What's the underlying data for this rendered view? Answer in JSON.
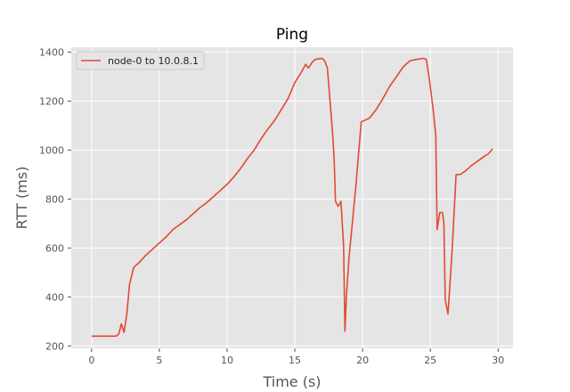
{
  "chart_data": {
    "type": "line",
    "title": "Ping",
    "xlabel": "Time (s)",
    "ylabel": "RTT (ms)",
    "xlim": [
      -1.5,
      31.1
    ],
    "ylim": [
      190,
      1420
    ],
    "xticks": [
      0,
      5,
      10,
      15,
      20,
      25,
      30
    ],
    "yticks": [
      200,
      400,
      600,
      800,
      1000,
      1200,
      1400
    ],
    "grid": true,
    "legend_position": "top-left",
    "background_color": "#e5e5e5",
    "series": [
      {
        "name": "node-0 to 10.0.8.1",
        "color": "#e24a33",
        "x": [
          0,
          0.5,
          1,
          1.5,
          1.8,
          2.0,
          2.2,
          2.4,
          2.6,
          2.8,
          3.1,
          3.5,
          4.0,
          4.5,
          5.0,
          5.5,
          6.0,
          6.5,
          7.0,
          7.5,
          8.0,
          8.5,
          9.0,
          9.5,
          10.0,
          10.5,
          11.0,
          11.5,
          12.0,
          12.5,
          13.0,
          13.5,
          14.0,
          14.5,
          15.0,
          15.5,
          15.8,
          16.0,
          16.3,
          16.5,
          17.0,
          17.2,
          17.4,
          17.6,
          17.8,
          17.9,
          18.0,
          18.2,
          18.4,
          18.5,
          18.6,
          18.7,
          18.8,
          19.0,
          19.5,
          19.9,
          20.5,
          21.0,
          21.5,
          22.0,
          22.5,
          23.0,
          23.5,
          24.0,
          24.5,
          24.7,
          24.9,
          25.2,
          25.4,
          25.5,
          25.7,
          25.9,
          26.0,
          26.1,
          26.3,
          26.6,
          26.9,
          27.2,
          27.6,
          28.0,
          28.5,
          29.0,
          29.3,
          29.6
        ],
        "y": [
          240,
          240,
          240,
          240,
          240,
          248,
          290,
          255,
          330,
          450,
          520,
          540,
          570,
          595,
          620,
          645,
          675,
          695,
          715,
          740,
          765,
          785,
          810,
          835,
          860,
          890,
          925,
          965,
          1000,
          1045,
          1085,
          1120,
          1165,
          1210,
          1275,
          1320,
          1350,
          1335,
          1360,
          1370,
          1375,
          1365,
          1335,
          1200,
          1060,
          960,
          790,
          770,
          790,
          700,
          610,
          260,
          400,
          560,
          850,
          1115,
          1130,
          1165,
          1210,
          1260,
          1300,
          1340,
          1365,
          1370,
          1375,
          1370,
          1300,
          1170,
          1060,
          675,
          745,
          745,
          700,
          390,
          330,
          580,
          900,
          900,
          915,
          935,
          955,
          975,
          985,
          1005
        ]
      }
    ]
  }
}
